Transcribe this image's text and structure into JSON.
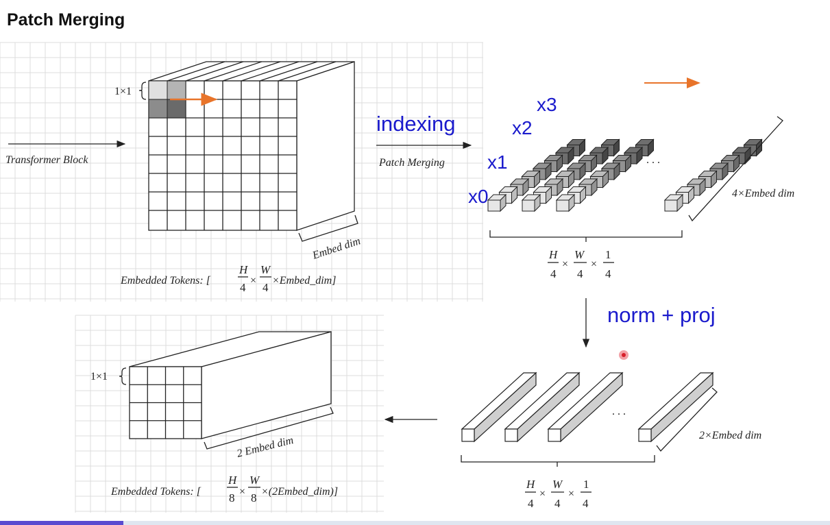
{
  "title": "Patch Merging",
  "top_left": {
    "input_label": "Transformer Block",
    "cell_label": "1×1",
    "depth_label": "Embed dim",
    "tokens_prefix": "Embedded Tokens: [",
    "tokens_h": "H",
    "tokens_w": "W",
    "tokens_den": "4",
    "tokens_times": "×",
    "tokens_suffix": "×Embed_dim]"
  },
  "top_middle": {
    "indexing_label": "indexing",
    "arrow_label": "Patch Merging"
  },
  "top_right": {
    "x0": "x0",
    "x1": "x1",
    "x2": "x2",
    "x3": "x3",
    "ellipsis": ". . .",
    "depth_label": "4×Embed dim",
    "size_h": "H",
    "size_w": "W",
    "size_one": "1",
    "size_den": "4",
    "times": "×"
  },
  "right_middle": {
    "norm_proj_label": "norm + proj"
  },
  "bottom_right": {
    "ellipsis": ". . .",
    "depth_label": "2×Embed dim",
    "size_h": "H",
    "size_w": "W",
    "size_one": "1",
    "size_den": "4",
    "times": "×"
  },
  "bottom_left": {
    "cell_label": "1×1",
    "depth_label": "2 Embed dim",
    "tokens_prefix": "Embedded Tokens: [",
    "tokens_h": "H",
    "tokens_w": "W",
    "tokens_den": "8",
    "tokens_times": "×",
    "tokens_suffix": "×(2Embed_dim)]"
  },
  "colors": {
    "accent_arrow": "#e8742a",
    "label_blue": "#1a1acc",
    "pointer_red": "#d81e2a"
  }
}
